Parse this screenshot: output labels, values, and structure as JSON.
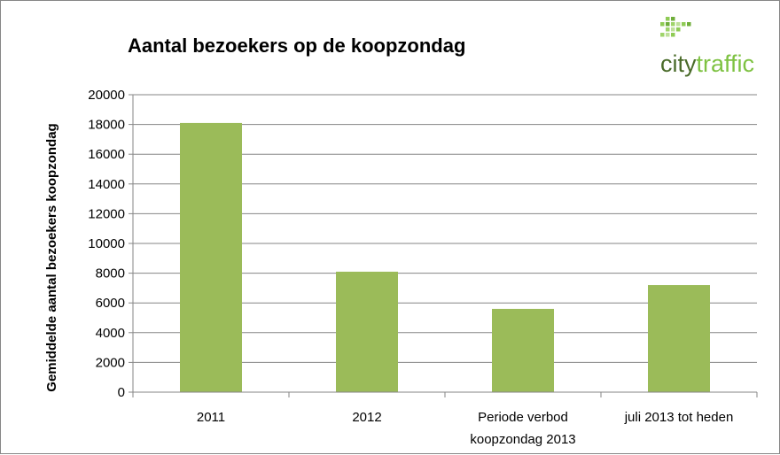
{
  "chart_data": {
    "type": "bar",
    "title": "Aantal bezoekers op de koopzondag",
    "xlabel": "",
    "ylabel": "Gemiddelde aantal bezoekers koopzondag",
    "categories": [
      [
        "2011"
      ],
      [
        "2012"
      ],
      [
        "Periode verbod",
        "koopzondag 2013"
      ],
      [
        "juli 2013 tot heden"
      ]
    ],
    "values": [
      18100,
      8100,
      5600,
      7200
    ],
    "ylim": [
      0,
      20000
    ],
    "yticks": [
      "0",
      "2000",
      "4000",
      "6000",
      "8000",
      "10000",
      "12000",
      "14000",
      "16000",
      "18000",
      "20000"
    ],
    "grid": true,
    "legend": "none",
    "colors": {
      "bar": "#9bbb59",
      "grid": "#868686",
      "axis": "#868686"
    }
  },
  "logo": {
    "text_left": "city",
    "text_right": "traffic",
    "color_left": "#4a6b2a",
    "color_right": "#7ec242"
  }
}
